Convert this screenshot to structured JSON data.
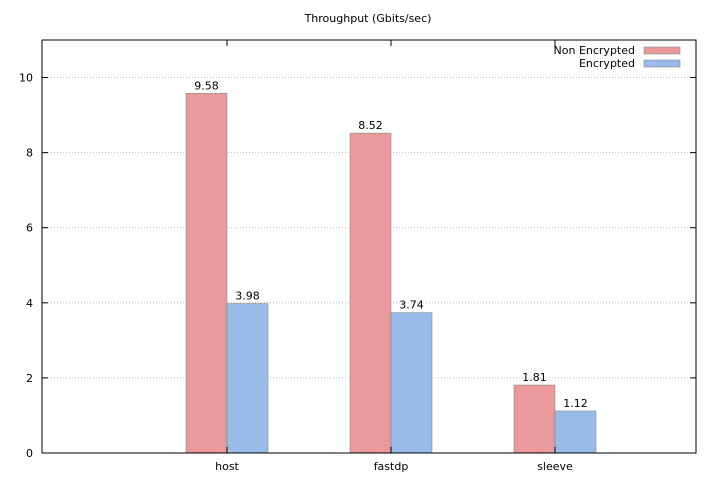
{
  "chart_data": {
    "type": "bar",
    "title": "Throughput (Gbits/sec)",
    "xlabel": "",
    "ylabel": "",
    "categories": [
      "host",
      "fastdp",
      "sleeve"
    ],
    "series": [
      {
        "name": "Non Encrypted",
        "values": [
          9.58,
          8.52,
          1.81
        ],
        "labels": [
          "9.58",
          "8.52",
          "1.81"
        ],
        "color": "#e99999"
      },
      {
        "name": "Encrypted",
        "values": [
          3.98,
          3.74,
          1.12
        ],
        "labels": [
          "3.98",
          "3.74",
          "1.12"
        ],
        "color": "#99bbe9"
      }
    ],
    "ylim": [
      0,
      11
    ],
    "yticks": [
      0,
      2,
      4,
      6,
      8,
      10
    ],
    "grid": true,
    "legend_position": "top-right"
  }
}
